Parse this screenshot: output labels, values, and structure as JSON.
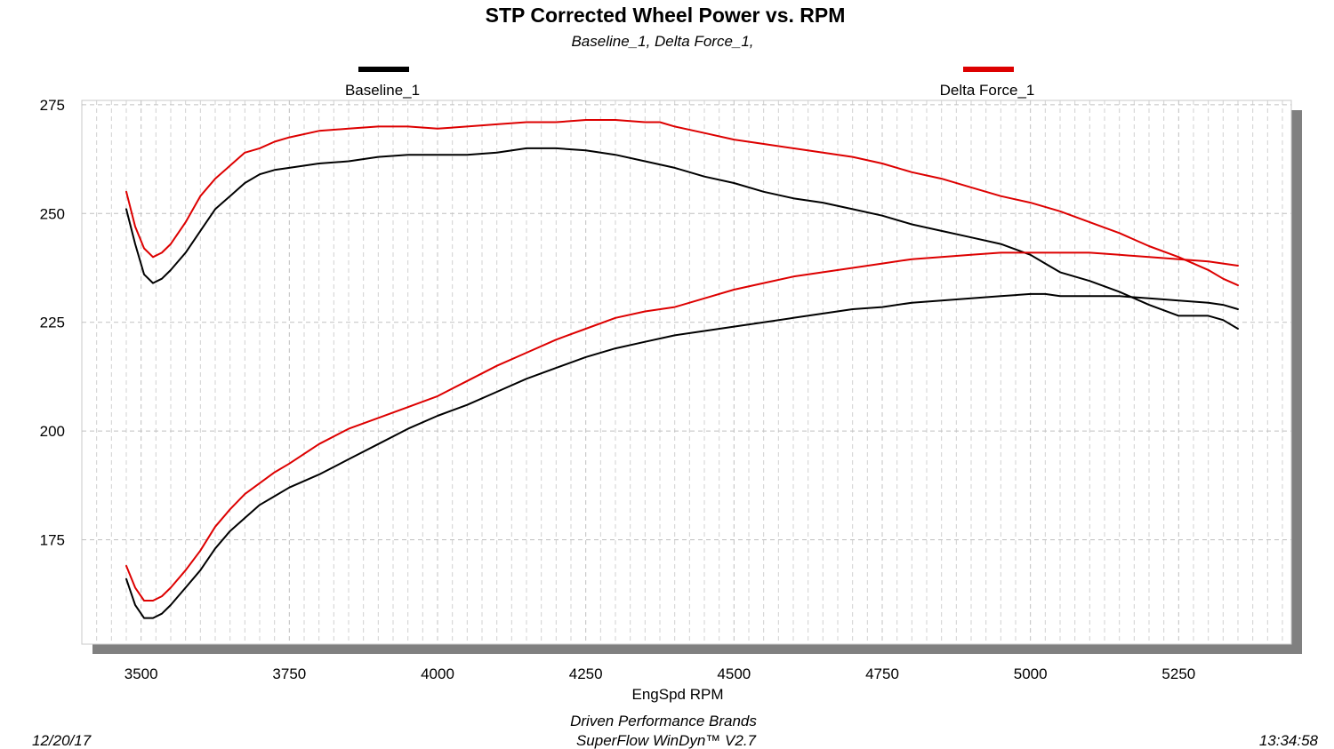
{
  "chart_data": {
    "type": "line",
    "title": "STP Corrected Wheel Power vs. RPM",
    "subtitle": "Baseline_1, Delta Force_1,",
    "xlabel": "EngSpd  RPM",
    "ylabel": "",
    "xlim": [
      3400,
      5440
    ],
    "ylim": [
      151,
      276
    ],
    "xticks": [
      3500,
      3750,
      4000,
      4250,
      4500,
      4750,
      5000,
      5250
    ],
    "yticks": [
      175,
      200,
      225,
      250,
      275
    ],
    "grid": true,
    "legend": "top",
    "series": [
      {
        "name": "Baseline_1",
        "color": "#000000",
        "curves": [
          {
            "label": "upper",
            "x": [
              3475,
              3490,
              3505,
              3520,
              3535,
              3550,
              3575,
              3600,
              3625,
              3650,
              3675,
              3700,
              3725,
              3750,
              3800,
              3850,
              3900,
              3950,
              4000,
              4050,
              4100,
              4150,
              4200,
              4250,
              4300,
              4350,
              4400,
              4450,
              4500,
              4550,
              4600,
              4650,
              4700,
              4750,
              4800,
              4850,
              4900,
              4950,
              5000,
              5025,
              5050,
              5100,
              5150,
              5200,
              5250,
              5300,
              5325,
              5350
            ],
            "y": [
              251,
              243,
              236,
              234,
              235,
              237,
              241,
              246,
              251,
              254,
              257,
              259,
              260,
              260.5,
              261.5,
              262,
              263,
              263.5,
              263.5,
              263.5,
              264,
              265,
              265,
              264.5,
              263.5,
              262,
              260.5,
              258.5,
              257,
              255,
              253.5,
              252.5,
              251,
              249.5,
              247.5,
              246,
              244.5,
              243,
              240.5,
              238.5,
              236.5,
              234.5,
              232,
              229,
              226.5,
              226.5,
              225.5,
              223.5
            ]
          },
          {
            "label": "lower",
            "x": [
              3475,
              3490,
              3505,
              3520,
              3535,
              3550,
              3575,
              3600,
              3625,
              3650,
              3675,
              3700,
              3725,
              3750,
              3800,
              3850,
              3900,
              3950,
              4000,
              4050,
              4100,
              4150,
              4200,
              4250,
              4300,
              4350,
              4400,
              4450,
              4500,
              4550,
              4600,
              4650,
              4700,
              4750,
              4800,
              4850,
              4900,
              4950,
              5000,
              5025,
              5050,
              5100,
              5150,
              5200,
              5250,
              5300,
              5325,
              5350
            ],
            "y": [
              166,
              160,
              157,
              157,
              158,
              160,
              164,
              168,
              173,
              177,
              180,
              183,
              185,
              187,
              190,
              193.5,
              197,
              200.5,
              203.5,
              206,
              209,
              212,
              214.5,
              217,
              219,
              220.5,
              222,
              223,
              224,
              225,
              226,
              227,
              228,
              228.5,
              229.5,
              230,
              230.5,
              231,
              231.5,
              231.5,
              231,
              231,
              231,
              230.5,
              230,
              229.5,
              229,
              228
            ]
          }
        ]
      },
      {
        "name": "Delta Force_1",
        "color": "#dd0000",
        "curves": [
          {
            "label": "upper",
            "x": [
              3475,
              3490,
              3505,
              3520,
              3535,
              3550,
              3575,
              3600,
              3625,
              3650,
              3675,
              3700,
              3725,
              3750,
              3800,
              3850,
              3900,
              3950,
              4000,
              4050,
              4100,
              4150,
              4200,
              4250,
              4300,
              4350,
              4375,
              4400,
              4450,
              4500,
              4550,
              4600,
              4650,
              4700,
              4750,
              4800,
              4850,
              4900,
              4950,
              5000,
              5050,
              5100,
              5150,
              5200,
              5250,
              5300,
              5325,
              5350
            ],
            "y": [
              255,
              247,
              242,
              240,
              241,
              243,
              248,
              254,
              258,
              261,
              264,
              265,
              266.5,
              267.5,
              269,
              269.5,
              270,
              270,
              269.5,
              270,
              270.5,
              271,
              271,
              271.5,
              271.5,
              271,
              271,
              270,
              268.5,
              267,
              266,
              265,
              264,
              263,
              261.5,
              259.5,
              258,
              256,
              254,
              252.5,
              250.5,
              248,
              245.5,
              242.5,
              240,
              237,
              235,
              233.5
            ]
          },
          {
            "label": "lower",
            "x": [
              3475,
              3490,
              3505,
              3520,
              3535,
              3550,
              3575,
              3600,
              3625,
              3650,
              3675,
              3700,
              3725,
              3750,
              3800,
              3850,
              3900,
              3950,
              4000,
              4050,
              4100,
              4150,
              4200,
              4250,
              4300,
              4350,
              4400,
              4450,
              4500,
              4550,
              4600,
              4650,
              4700,
              4750,
              4800,
              4850,
              4900,
              4950,
              5000,
              5050,
              5100,
              5150,
              5200,
              5250,
              5300,
              5325,
              5350
            ],
            "y": [
              169,
              164,
              161,
              161,
              162,
              164,
              168,
              172.5,
              178,
              182,
              185.5,
              188,
              190.5,
              192.5,
              197,
              200.5,
              203,
              205.5,
              208,
              211.5,
              215,
              218,
              221,
              223.5,
              226,
              227.5,
              228.5,
              230.5,
              232.5,
              234,
              235.5,
              236.5,
              237.5,
              238.5,
              239.5,
              240,
              240.5,
              241,
              241,
              241,
              241,
              240.5,
              240,
              239.5,
              239,
              238.5,
              238
            ]
          }
        ]
      }
    ],
    "footer": {
      "date": "12/20/17",
      "company": "Driven Performance Brands",
      "software": "SuperFlow WinDyn™  V2.7",
      "time": "13:34:58"
    }
  }
}
